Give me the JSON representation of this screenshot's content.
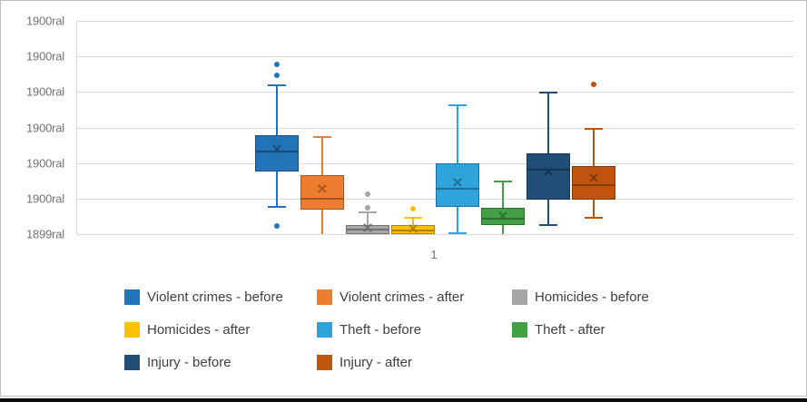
{
  "chart_data": {
    "type": "boxplot",
    "title": "",
    "x_axis": {
      "categories": [
        "1"
      ]
    },
    "y_axis": {
      "tick_labels": [
        "1900ral",
        "1900ral",
        "1900ral",
        "1900ral",
        "1900ral",
        "1900ral",
        "1899ral"
      ],
      "gridlines": true,
      "value_scale": {
        "min": 0,
        "max": 6,
        "note": "values expressed in gridline units: 0 = bottom tick (1899ral), 6 = top tick (1900ral)"
      }
    },
    "legend": {
      "position": "bottom",
      "columns": 3
    },
    "series": [
      {
        "name": "Violent crimes - before",
        "color": "#2373B9",
        "whisker_high": 4.19,
        "q3": 2.78,
        "mean": 2.4,
        "median": 2.32,
        "q1": 1.76,
        "whisker_low": 0.77,
        "outliers": [
          4.77,
          4.47,
          0.23
        ],
        "cap_high": true,
        "cap_low": true
      },
      {
        "name": "Violent crimes - after",
        "color": "#ED7D31",
        "whisker_high": 2.73,
        "q3": 1.66,
        "mean": 1.28,
        "median": 1.0,
        "q1": 0.69,
        "whisker_low": 0.0,
        "outliers": [],
        "cap_high": true,
        "cap_low": false
      },
      {
        "name": "Homicides - before",
        "color": "#A6A6A6",
        "whisker_high": 0.61,
        "q3": 0.26,
        "mean": 0.18,
        "median": 0.12,
        "q1": 0.0,
        "whisker_low": 0.0,
        "outliers": [
          1.12,
          0.75
        ],
        "cap_high": true,
        "cap_low": false
      },
      {
        "name": "Homicides - after",
        "color": "#FFC000",
        "whisker_high": 0.46,
        "q3": 0.26,
        "mean": 0.15,
        "median": 0.1,
        "q1": 0.0,
        "whisker_low": 0.0,
        "outliers": [
          0.71
        ],
        "cap_high": true,
        "cap_low": false
      },
      {
        "name": "Theft - before",
        "color": "#2EA3DC",
        "whisker_high": 3.63,
        "q3": 1.99,
        "mean": 1.46,
        "median": 1.28,
        "q1": 0.77,
        "whisker_low": 0.03,
        "outliers": [],
        "cap_high": true,
        "cap_low": true
      },
      {
        "name": "Theft - after",
        "color": "#43A047",
        "whisker_high": 1.48,
        "q3": 0.74,
        "mean": 0.51,
        "median": 0.43,
        "q1": 0.26,
        "whisker_low": 0.0,
        "outliers": [],
        "cap_high": true,
        "cap_low": false
      },
      {
        "name": "Injury - before",
        "color": "#1F4E79",
        "whisker_high": 3.98,
        "q3": 2.28,
        "mean": 1.76,
        "median": 1.81,
        "q1": 0.98,
        "whisker_low": 0.25,
        "outliers": [],
        "cap_high": true,
        "cap_low": true
      },
      {
        "name": "Injury - after",
        "color": "#C0540E",
        "whisker_high": 2.96,
        "q3": 1.91,
        "mean": 1.58,
        "median": 1.39,
        "q1": 0.98,
        "whisker_low": 0.47,
        "outliers": [
          4.21
        ],
        "cap_high": true,
        "cap_low": true
      }
    ]
  }
}
